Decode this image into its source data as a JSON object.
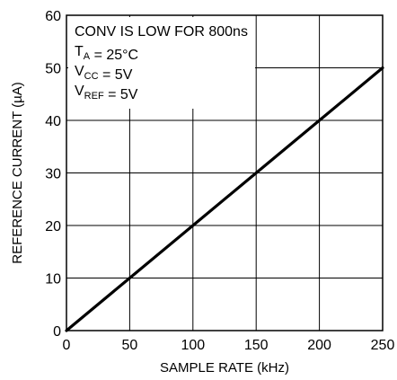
{
  "chart_data": {
    "type": "line",
    "xlabel": "SAMPLE RATE (kHz)",
    "ylabel": "REFERENCE CURRENT (µA)",
    "xlim": [
      0,
      250
    ],
    "ylim": [
      0,
      60
    ],
    "x_ticks": [
      "0",
      "50",
      "100",
      "150",
      "200",
      "250"
    ],
    "y_ticks": [
      "0",
      "10",
      "20",
      "30",
      "40",
      "50",
      "60"
    ],
    "grid": true,
    "series": [
      {
        "x": [
          0,
          50,
          100,
          150,
          200,
          250
        ],
        "y": [
          0,
          10,
          20,
          30,
          40,
          50
        ],
        "color": "#000000"
      }
    ],
    "annotations": [
      {
        "parts": [
          {
            "text": "CONV IS LOW FOR 800ns"
          }
        ]
      },
      {
        "parts": [
          {
            "text": "T"
          },
          {
            "text": "A",
            "sub": true
          },
          {
            "text": " = 25°C"
          }
        ]
      },
      {
        "parts": [
          {
            "text": "V"
          },
          {
            "text": "CC",
            "sub": true
          },
          {
            "text": " = 5V"
          }
        ]
      },
      {
        "parts": [
          {
            "text": "V"
          },
          {
            "text": "REF",
            "sub": true
          },
          {
            "text": " = 5V"
          }
        ]
      }
    ]
  }
}
